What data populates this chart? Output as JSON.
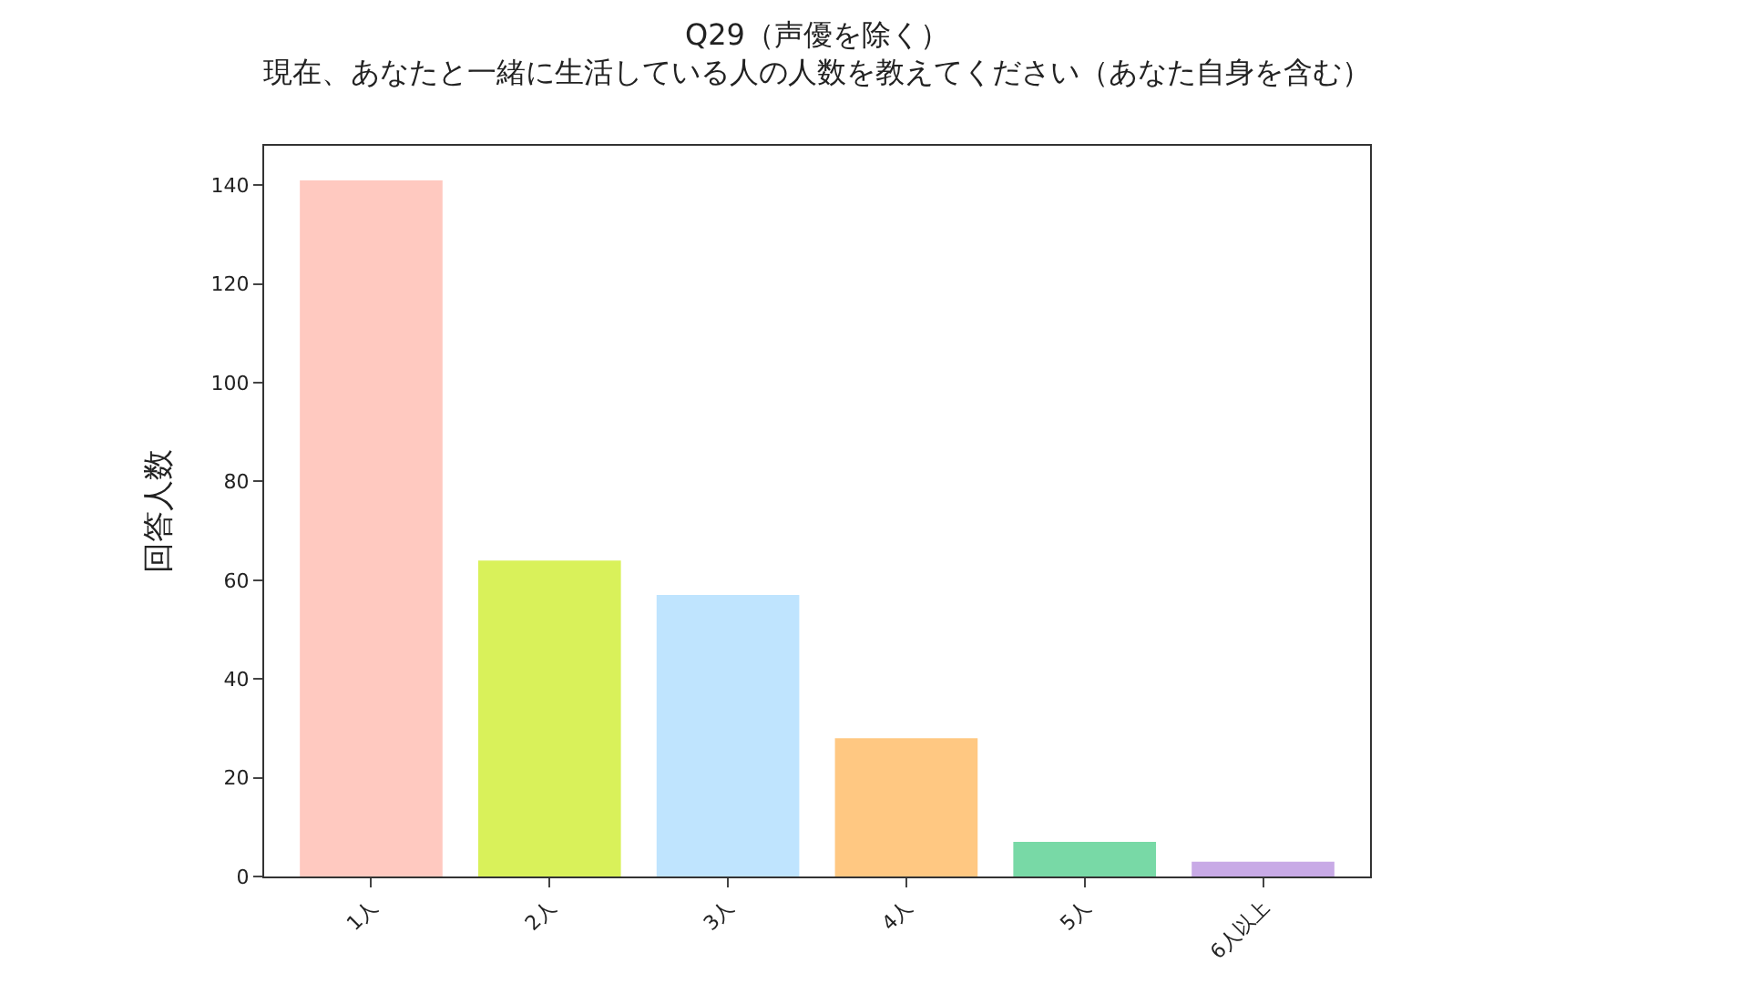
{
  "chart_data": {
    "type": "bar",
    "title": "Q29（声優を除く）",
    "subtitle": "現在、あなたと一緒に生活している人の人数を教えてください（あなた自身を含む）",
    "ylabel": "回答人数",
    "categories": [
      "1人",
      "2人",
      "3人",
      "4人",
      "5人",
      "6人以上"
    ],
    "values": [
      141,
      64,
      57,
      28,
      7,
      3
    ],
    "colors": [
      "#ffc9c0",
      "#d9f15a",
      "#bfe4fe",
      "#ffc882",
      "#78d9a6",
      "#c8aae6"
    ],
    "ylim": [
      0,
      148
    ],
    "yticks": [
      0,
      20,
      40,
      60,
      80,
      100,
      120,
      140
    ]
  }
}
